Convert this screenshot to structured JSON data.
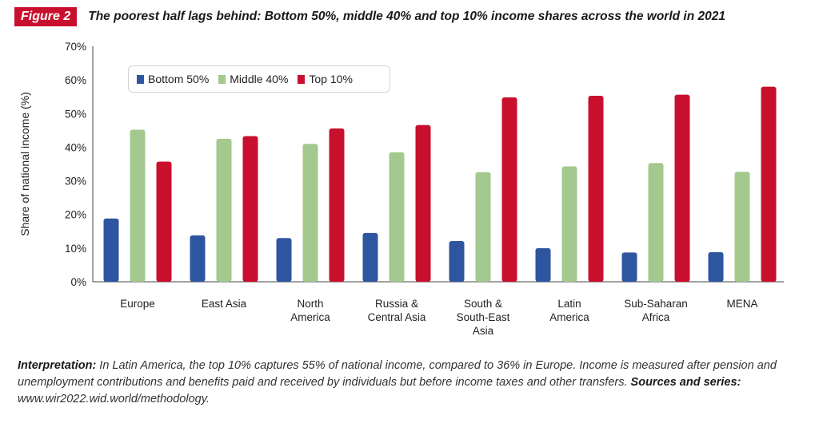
{
  "figure": {
    "label": "Figure 2",
    "title": "The poorest half lags behind: Bottom 50%, middle 40% and top 10% income shares across the world in 2021"
  },
  "chart_data": {
    "type": "bar",
    "categories": [
      [
        "Europe"
      ],
      [
        "East Asia"
      ],
      [
        "North",
        "America"
      ],
      [
        "Russia &",
        "Central Asia"
      ],
      [
        "South &",
        "South-East",
        "Asia"
      ],
      [
        "Latin",
        "America"
      ],
      [
        "Sub-Saharan",
        "Africa"
      ],
      [
        "MENA"
      ]
    ],
    "series": [
      {
        "name": "Bottom 50%",
        "color": "#2e55a0",
        "values": [
          18.8,
          13.8,
          13.0,
          14.5,
          12.1,
          10.0,
          8.7,
          8.8
        ]
      },
      {
        "name": "Middle 40%",
        "color": "#a3c98e",
        "values": [
          45.2,
          42.5,
          41.0,
          38.5,
          32.6,
          34.3,
          35.3,
          32.7
        ]
      },
      {
        "name": "Top 10%",
        "color": "#c8102e",
        "values": [
          35.7,
          43.3,
          45.6,
          46.6,
          54.8,
          55.3,
          55.6,
          58.0
        ]
      }
    ],
    "ylabel": "Share of national income (%)",
    "yticks": [
      "0%",
      "10%",
      "20%",
      "30%",
      "40%",
      "50%",
      "60%",
      "70%"
    ],
    "ylim": [
      0,
      70
    ],
    "legend_position": "top-left",
    "grid": false
  },
  "note": {
    "interp_label": "Interpretation:",
    "interp_text": " In Latin America, the top 10% captures 55% of national income, compared to 36% in Europe. Income is measured after pension and unemployment contributions and benefits paid and received by individuals but before income taxes and other transfers. ",
    "sources_label": "Sources and series:",
    "sources_text": " www.wir2022.wid.world/methodology."
  }
}
